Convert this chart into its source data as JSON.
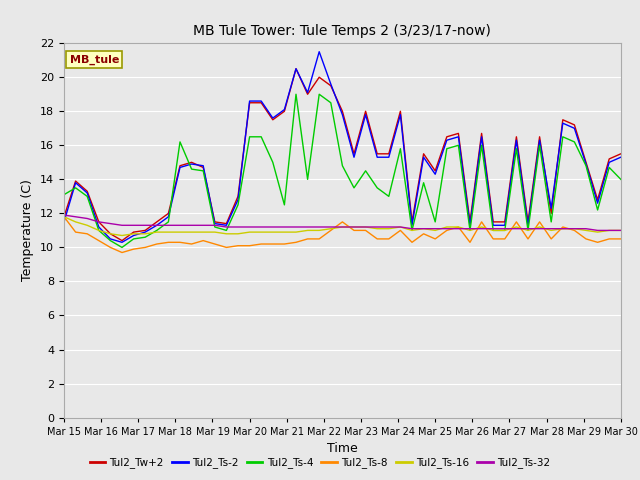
{
  "title": "MB Tule Tower: Tule Temps 2 (3/23/17-now)",
  "xlabel": "Time",
  "ylabel": "Temperature (C)",
  "ylim": [
    0,
    22
  ],
  "yticks": [
    0,
    2,
    4,
    6,
    8,
    10,
    12,
    14,
    16,
    18,
    20,
    22
  ],
  "xtick_labels": [
    "Mar 15",
    "Mar 16",
    "Mar 17",
    "Mar 18",
    "Mar 19",
    "Mar 20",
    "Mar 21",
    "Mar 22",
    "Mar 23",
    "Mar 24",
    "Mar 25",
    "Mar 26",
    "Mar 27",
    "Mar 28",
    "Mar 29",
    "Mar 30"
  ],
  "bg_color": "#e8e8e8",
  "grid_color": "white",
  "legend_label": "MB_tule",
  "series": {
    "Tul2_Tw+2": {
      "color": "#cc0000",
      "lw": 1.0,
      "values": [
        11.8,
        13.9,
        13.3,
        11.5,
        10.8,
        10.4,
        10.9,
        11.0,
        11.5,
        12.0,
        14.8,
        15.0,
        14.7,
        11.5,
        11.4,
        13.0,
        18.5,
        18.5,
        17.5,
        18.0,
        20.5,
        19.0,
        20.0,
        19.5,
        18.0,
        15.5,
        18.0,
        15.5,
        15.5,
        18.0,
        11.5,
        15.5,
        14.5,
        16.5,
        16.7,
        11.5,
        16.7,
        11.5,
        11.5,
        16.5,
        11.5,
        16.5,
        12.0,
        17.5,
        17.2,
        15.0,
        12.8,
        15.2,
        15.5
      ]
    },
    "Tul2_Ts-2": {
      "color": "#0000ff",
      "lw": 1.0,
      "values": [
        11.5,
        13.8,
        13.2,
        11.2,
        10.5,
        10.3,
        10.7,
        10.9,
        11.3,
        11.8,
        14.7,
        14.9,
        14.8,
        11.4,
        11.3,
        12.8,
        18.6,
        18.6,
        17.6,
        18.1,
        20.5,
        19.1,
        21.5,
        19.6,
        17.8,
        15.3,
        17.8,
        15.3,
        15.3,
        17.8,
        11.3,
        15.3,
        14.3,
        16.3,
        16.5,
        11.3,
        16.5,
        11.3,
        11.3,
        16.3,
        11.3,
        16.3,
        12.3,
        17.3,
        17.0,
        14.9,
        12.6,
        15.0,
        15.3
      ]
    },
    "Tul2_Ts-4": {
      "color": "#00cc00",
      "lw": 1.0,
      "values": [
        13.1,
        13.5,
        13.0,
        11.0,
        10.4,
        10.0,
        10.5,
        10.6,
        11.0,
        11.5,
        16.2,
        14.6,
        14.5,
        11.2,
        11.0,
        12.5,
        16.5,
        16.5,
        15.0,
        12.5,
        19.0,
        14.0,
        19.0,
        18.5,
        14.8,
        13.5,
        14.5,
        13.5,
        13.0,
        15.8,
        11.0,
        13.8,
        11.5,
        15.8,
        16.0,
        11.0,
        16.0,
        11.0,
        11.0,
        15.8,
        11.0,
        16.0,
        11.5,
        16.5,
        16.2,
        14.8,
        12.2,
        14.7,
        14.0
      ]
    },
    "Tul2_Ts-8": {
      "color": "#ff8800",
      "lw": 1.0,
      "values": [
        11.8,
        10.9,
        10.8,
        10.4,
        10.0,
        9.7,
        9.9,
        10.0,
        10.2,
        10.3,
        10.3,
        10.2,
        10.4,
        10.2,
        10.0,
        10.1,
        10.1,
        10.2,
        10.2,
        10.2,
        10.3,
        10.5,
        10.5,
        11.0,
        11.5,
        11.0,
        11.0,
        10.5,
        10.5,
        11.0,
        10.3,
        10.8,
        10.5,
        11.0,
        11.2,
        10.3,
        11.5,
        10.5,
        10.5,
        11.5,
        10.5,
        11.5,
        10.5,
        11.2,
        11.0,
        10.5,
        10.3,
        10.5,
        10.5
      ]
    },
    "Tul2_Ts-16": {
      "color": "#cccc00",
      "lw": 1.0,
      "values": [
        11.8,
        11.5,
        11.3,
        11.0,
        10.8,
        10.7,
        10.8,
        10.8,
        10.9,
        10.9,
        10.9,
        10.9,
        10.9,
        10.9,
        10.8,
        10.8,
        10.9,
        10.9,
        10.9,
        10.9,
        10.9,
        11.0,
        11.0,
        11.1,
        11.2,
        11.2,
        11.2,
        11.1,
        11.1,
        11.2,
        11.0,
        11.1,
        11.0,
        11.2,
        11.2,
        11.0,
        11.2,
        11.0,
        11.0,
        11.2,
        11.0,
        11.2,
        11.0,
        11.1,
        11.1,
        11.0,
        10.9,
        11.0,
        11.0
      ]
    },
    "Tul2_Ts-32": {
      "color": "#aa00aa",
      "lw": 1.0,
      "values": [
        11.9,
        11.8,
        11.7,
        11.5,
        11.4,
        11.3,
        11.3,
        11.3,
        11.3,
        11.3,
        11.3,
        11.3,
        11.3,
        11.3,
        11.2,
        11.2,
        11.2,
        11.2,
        11.2,
        11.2,
        11.2,
        11.2,
        11.2,
        11.2,
        11.2,
        11.2,
        11.2,
        11.2,
        11.2,
        11.2,
        11.1,
        11.1,
        11.1,
        11.1,
        11.1,
        11.1,
        11.1,
        11.1,
        11.1,
        11.1,
        11.1,
        11.1,
        11.1,
        11.1,
        11.1,
        11.1,
        11.0,
        11.0,
        11.0
      ]
    }
  }
}
